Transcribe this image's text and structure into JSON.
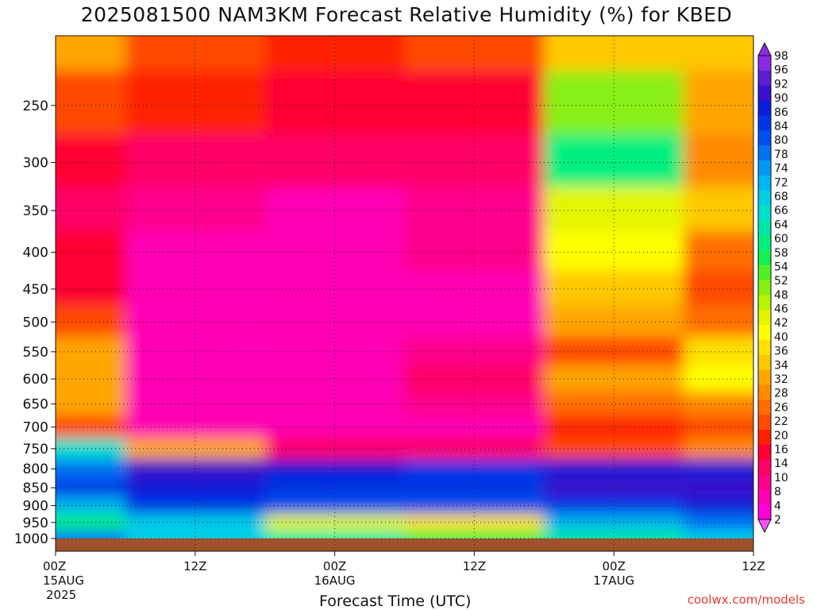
{
  "title": "2025081500 NAM3KM Forecast Relative Humidity (%) for KBED",
  "credit": "coolwx.com/models",
  "chart_data": {
    "type": "heatmap",
    "title": "2025081500 NAM3KM Forecast Relative Humidity (%) for KBED",
    "xlabel": "Forecast Time (UTC)",
    "ylabel": "",
    "x_ticks": [
      {
        "label": "00Z",
        "sub1": "15AUG",
        "sub2": "2025"
      },
      {
        "label": "12Z",
        "sub1": "",
        "sub2": ""
      },
      {
        "label": "00Z",
        "sub1": "16AUG",
        "sub2": ""
      },
      {
        "label": "12Z",
        "sub1": "",
        "sub2": ""
      },
      {
        "label": "00Z",
        "sub1": "17AUG",
        "sub2": ""
      },
      {
        "label": "12Z",
        "sub1": "",
        "sub2": ""
      }
    ],
    "x": [
      "15AUG 00Z",
      "15AUG 12Z",
      "16AUG 00Z",
      "16AUG 12Z",
      "17AUG 00Z",
      "17AUG 12Z"
    ],
    "xlim_hours": [
      0,
      60
    ],
    "y_levels_hpa": [
      200,
      250,
      300,
      350,
      400,
      450,
      500,
      550,
      600,
      650,
      700,
      750,
      800,
      850,
      900,
      950,
      1000
    ],
    "y_ticks": [
      "250",
      "300",
      "350",
      "400",
      "450",
      "500",
      "550",
      "600",
      "650",
      "700",
      "750",
      "800",
      "850",
      "900",
      "950",
      "1000"
    ],
    "ylim_hpa": [
      200,
      1000
    ],
    "y_scale": "log-pressure",
    "grid": true,
    "ground_color": "#a0522d",
    "colorbar": {
      "position": "right",
      "units": "%",
      "ticks": [
        "98",
        "96",
        "92",
        "90",
        "86",
        "84",
        "80",
        "78",
        "74",
        "72",
        "68",
        "66",
        "64",
        "60",
        "58",
        "54",
        "52",
        "48",
        "46",
        "42",
        "40",
        "36",
        "34",
        "32",
        "28",
        "26",
        "22",
        "20",
        "16",
        "14",
        "10",
        "8",
        "4",
        "2"
      ],
      "colors": [
        "#8a2be2",
        "#5a1fd0",
        "#3a10cc",
        "#0a1ed8",
        "#0035e6",
        "#004ff0",
        "#0074f5",
        "#0099f5",
        "#00b6f0",
        "#00cde6",
        "#00dfcc",
        "#00e8a8",
        "#00f080",
        "#14f050",
        "#50f028",
        "#88f014",
        "#b8f500",
        "#e4f500",
        "#ffff00",
        "#ffe000",
        "#ffc800",
        "#ffa500",
        "#ff8a00",
        "#ff6e00",
        "#ff4a00",
        "#ff2000",
        "#ff0030",
        "#ff0066",
        "#ff008c",
        "#ff00b4",
        "#ff00dc"
      ],
      "arrow_top": "#8a2be2",
      "arrow_bottom": "#ff55ff"
    },
    "grid_hours": [
      0,
      12,
      24,
      36,
      48,
      60
    ],
    "values": [
      [
        30,
        20,
        18,
        22,
        34,
        34
      ],
      [
        22,
        18,
        14,
        16,
        50,
        30
      ],
      [
        16,
        12,
        10,
        12,
        60,
        26
      ],
      [
        12,
        8,
        6,
        8,
        44,
        34
      ],
      [
        14,
        6,
        4,
        8,
        40,
        24
      ],
      [
        16,
        6,
        4,
        6,
        34,
        22
      ],
      [
        22,
        6,
        4,
        6,
        30,
        24
      ],
      [
        30,
        6,
        4,
        8,
        22,
        36
      ],
      [
        32,
        6,
        4,
        10,
        30,
        40
      ],
      [
        30,
        6,
        4,
        8,
        24,
        26
      ],
      [
        22,
        6,
        4,
        6,
        18,
        20
      ],
      [
        66,
        30,
        12,
        10,
        20,
        28
      ],
      [
        80,
        92,
        88,
        84,
        88,
        90
      ],
      [
        84,
        88,
        86,
        84,
        92,
        92
      ],
      [
        74,
        84,
        82,
        82,
        86,
        88
      ],
      [
        60,
        68,
        42,
        38,
        72,
        78
      ],
      [
        78,
        70,
        62,
        56,
        64,
        68
      ]
    ]
  }
}
